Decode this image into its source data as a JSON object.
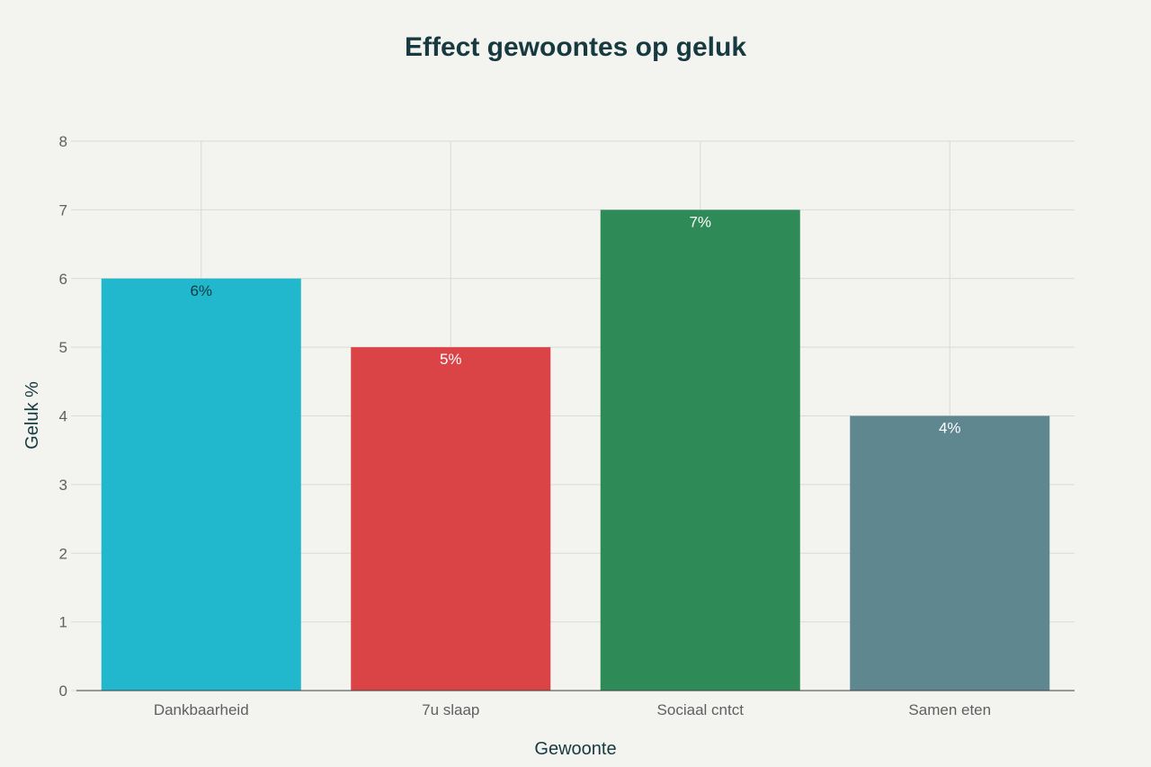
{
  "chart_data": {
    "type": "bar",
    "title": "Effect gewoontes op geluk",
    "xlabel": "Gewoonte",
    "ylabel": "Geluk %",
    "categories": [
      "Dankbaarheid",
      "7u slaap",
      "Sociaal cntct",
      "Samen eten"
    ],
    "values": [
      6,
      5,
      7,
      4
    ],
    "data_labels": [
      "6%",
      "5%",
      "7%",
      "4%"
    ],
    "colors": [
      "#21b7cc",
      "#db4447",
      "#2e8a57",
      "#5e8790"
    ],
    "label_colors": [
      "#163a3f",
      "#ffffff",
      "#ffffff",
      "#ffffff"
    ],
    "ylim": [
      0,
      8
    ],
    "yticks": [
      0,
      1,
      2,
      3,
      4,
      5,
      6,
      7,
      8
    ],
    "grid": true
  }
}
